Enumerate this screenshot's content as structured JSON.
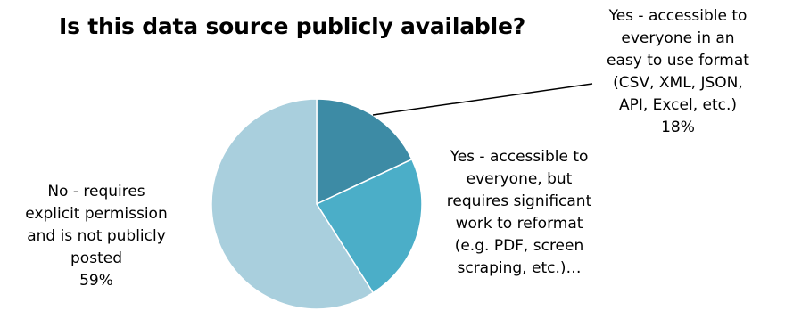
{
  "chart_data": {
    "type": "pie",
    "title": "Is this data source publicly available?",
    "start_angle_deg": 0,
    "direction": "clockwise",
    "slices": [
      {
        "key": "easy",
        "label_lines": [
          "Yes - accessible to",
          "everyone in an",
          "easy to use format",
          "(CSV, XML, JSON,",
          "API, Excel, etc.)"
        ],
        "pct_label": "18%",
        "value": 18,
        "color": "#3D8BA5"
      },
      {
        "key": "reform",
        "label_lines": [
          "Yes - accessible to",
          "everyone, but",
          "requires significant",
          "work to reformat",
          "(e.g. PDF, screen",
          "scraping, etc.)…"
        ],
        "pct_label": "",
        "value": 23,
        "color": "#4BAEC8"
      },
      {
        "key": "no",
        "label_lines": [
          "No - requires",
          "explicit permission",
          "and is not publicly",
          "posted"
        ],
        "pct_label": "59%",
        "value": 59,
        "color": "#A9CFDD"
      }
    ]
  }
}
